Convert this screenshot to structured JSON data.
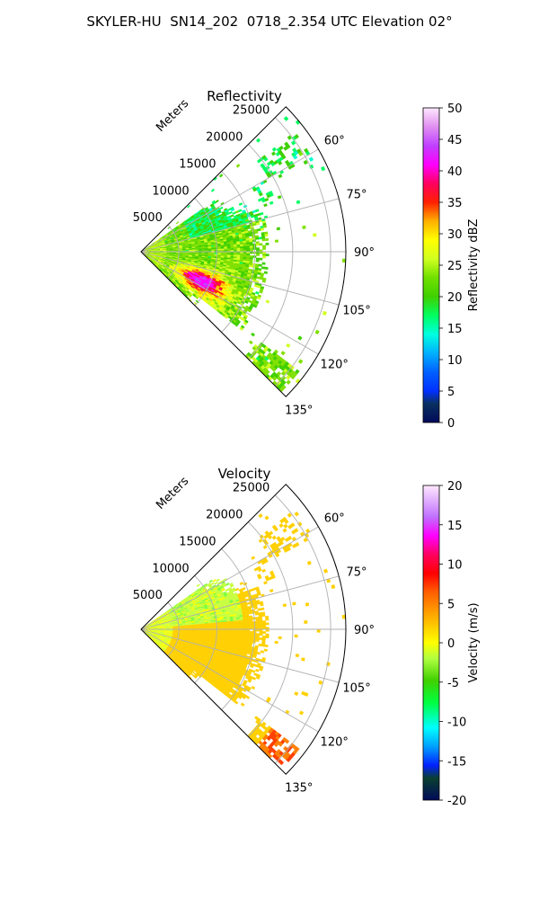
{
  "figure": {
    "title": "SKYLER-HU  SN14_202  0718_2.354 UTC Elevation 02°"
  },
  "chart_data": [
    {
      "type": "heatmap",
      "projection": "polar-sector",
      "title": "Reflectivity",
      "range_label": "Meters",
      "range_ticks": [
        5000,
        10000,
        15000,
        20000,
        25000
      ],
      "range_max": 27000,
      "azimuth_ticks_deg": [
        60,
        75,
        90,
        105,
        120,
        135
      ],
      "azimuth_tick_labels": [
        "60°",
        "75°",
        "90°",
        "105°",
        "120°",
        "135°"
      ],
      "azimuth_range_deg": [
        45,
        135
      ],
      "grid": true,
      "colorbar": {
        "label": "Reflectivity dBZ",
        "min": 0,
        "max": 50,
        "ticks": [
          0,
          5,
          10,
          15,
          20,
          25,
          30,
          35,
          40,
          45,
          50
        ],
        "colormap": [
          "#001060",
          "#0a2a8a",
          "#0040ff",
          "#00a8ff",
          "#00ffe0",
          "#00ff80",
          "#40d000",
          "#80e000",
          "#ffff00",
          "#ffb000",
          "#ff2000",
          "#ff0080",
          "#ff00ff",
          "#b040ff",
          "#e080ff",
          "#ffe0ff"
        ]
      }
    },
    {
      "type": "heatmap",
      "projection": "polar-sector",
      "title": "Velocity",
      "range_label": "Meters",
      "range_ticks": [
        5000,
        10000,
        15000,
        20000,
        25000
      ],
      "range_max": 27000,
      "azimuth_ticks_deg": [
        60,
        75,
        90,
        105,
        120,
        135
      ],
      "azimuth_tick_labels": [
        "60°",
        "75°",
        "90°",
        "105°",
        "120°",
        "135°"
      ],
      "azimuth_range_deg": [
        45,
        135
      ],
      "grid": true,
      "colorbar": {
        "label": "Velocity (m/s)",
        "min": -20,
        "max": 20,
        "ticks": [
          -20,
          -15,
          -10,
          -5,
          0,
          5,
          10,
          15,
          20
        ],
        "colormap": [
          "#001060",
          "#0a4030",
          "#0030ff",
          "#00a0ff",
          "#00ffff",
          "#00ff60",
          "#40d000",
          "#a0ff40",
          "#ffff00",
          "#ffb000",
          "#ff6000",
          "#ff0000",
          "#ff0080",
          "#ff00ff",
          "#c080ff",
          "#ffe0ff"
        ]
      }
    }
  ]
}
